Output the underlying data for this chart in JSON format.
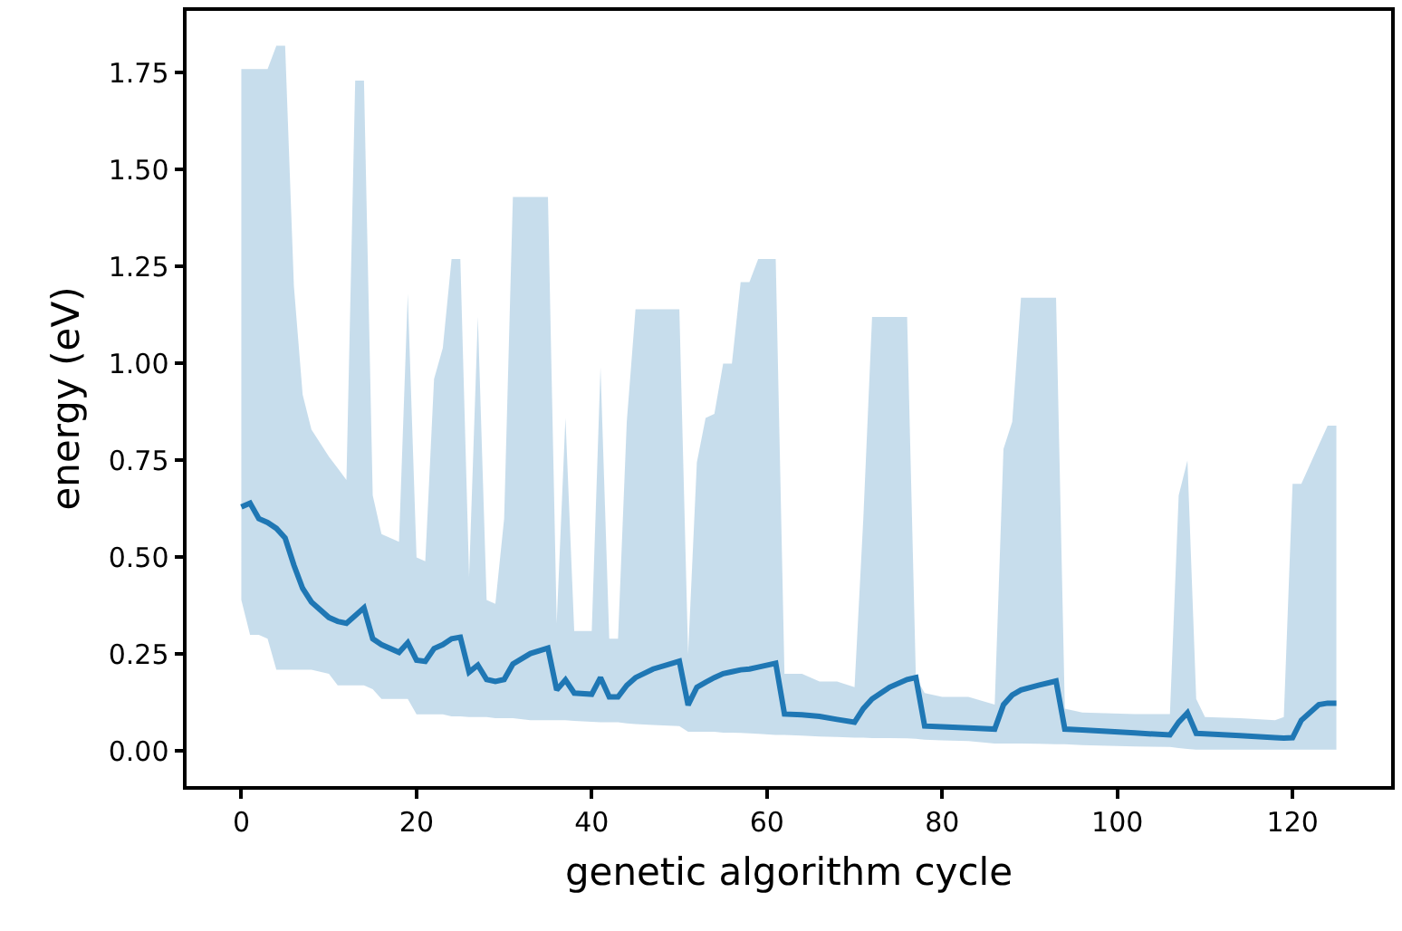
{
  "chart_data": {
    "type": "line",
    "xlabel": "genetic algorithm cycle",
    "ylabel": "energy (eV)",
    "xlim": [
      -6.25,
      131.25
    ],
    "xticks": [
      0,
      20,
      40,
      60,
      80,
      100,
      120
    ],
    "ylim": [
      -0.09,
      1.91
    ],
    "yticks": [
      {
        "value": 0,
        "label": "0.00"
      },
      {
        "value": 0.25,
        "label": "0.25"
      },
      {
        "value": 0.5,
        "label": "0.50"
      },
      {
        "value": 0.75,
        "label": "0.75"
      },
      {
        "value": 1,
        "label": "1.00"
      },
      {
        "value": 1.25,
        "label": "1.25"
      },
      {
        "value": 1.5,
        "label": "1.50"
      },
      {
        "value": 1.75,
        "label": "1.75"
      }
    ],
    "series": [
      {
        "color": "#1f77b4",
        "x": [
          0,
          1,
          2,
          3,
          4,
          5,
          6,
          7,
          8,
          10,
          11,
          12,
          13,
          14,
          15,
          16,
          18,
          19,
          20,
          21,
          22,
          23,
          24,
          25,
          26,
          27,
          28,
          29,
          30,
          31,
          33,
          35,
          36,
          37,
          38,
          40,
          41,
          42,
          43,
          44,
          45,
          47,
          50,
          51,
          52,
          53,
          54,
          55,
          56,
          57,
          58,
          59,
          61,
          62,
          64,
          66,
          68,
          70,
          71,
          72,
          74,
          76,
          77,
          78,
          80,
          83,
          86,
          87,
          88,
          89,
          91,
          93,
          94,
          96,
          102,
          106,
          107,
          108,
          109,
          110,
          114,
          118,
          119,
          120,
          121,
          123,
          124,
          125
        ],
        "values": [
          0.63,
          0.64,
          0.6,
          0.59,
          0.575,
          0.55,
          0.48,
          0.42,
          0.385,
          0.345,
          0.335,
          0.33,
          0.35,
          0.37,
          0.29,
          0.275,
          0.255,
          0.28,
          0.235,
          0.232,
          0.265,
          0.275,
          0.29,
          0.294,
          0.204,
          0.222,
          0.185,
          0.18,
          0.185,
          0.225,
          0.252,
          0.266,
          0.158,
          0.184,
          0.15,
          0.147,
          0.19,
          0.14,
          0.14,
          0.17,
          0.19,
          0.212,
          0.232,
          0.119,
          0.165,
          0.178,
          0.19,
          0.2,
          0.205,
          0.21,
          0.212,
          0.217,
          0.227,
          0.096,
          0.094,
          0.09,
          0.082,
          0.075,
          0.11,
          0.135,
          0.165,
          0.185,
          0.19,
          0.065,
          0.063,
          0.06,
          0.057,
          0.12,
          0.145,
          0.158,
          0.17,
          0.181,
          0.057,
          0.055,
          0.047,
          0.042,
          0.075,
          0.099,
          0.046,
          0.045,
          0.04,
          0.035,
          0.034,
          0.035,
          0.08,
          0.12,
          0.124,
          0.124
        ],
        "upper": [
          1.76,
          1.76,
          1.76,
          1.76,
          1.82,
          1.82,
          1.2,
          0.92,
          0.83,
          0.76,
          0.73,
          0.7,
          1.73,
          1.73,
          0.66,
          0.56,
          0.54,
          1.18,
          0.5,
          0.49,
          0.96,
          1.04,
          1.27,
          1.27,
          0.45,
          1.12,
          0.39,
          0.38,
          0.6,
          1.43,
          1.43,
          1.43,
          0.33,
          0.86,
          0.31,
          0.31,
          0.99,
          0.29,
          0.29,
          0.85,
          1.14,
          1.14,
          1.14,
          0.25,
          0.745,
          0.86,
          0.87,
          1.0,
          1.0,
          1.21,
          1.21,
          1.27,
          1.27,
          0.2,
          0.2,
          0.18,
          0.18,
          0.165,
          0.6,
          1.12,
          1.12,
          1.12,
          0.19,
          0.15,
          0.14,
          0.14,
          0.12,
          0.78,
          0.85,
          1.17,
          1.17,
          1.17,
          0.11,
          0.1,
          0.096,
          0.096,
          0.66,
          0.75,
          0.135,
          0.088,
          0.085,
          0.08,
          0.088,
          0.69,
          0.69,
          0.79,
          0.84,
          0.84
        ],
        "lower": [
          0.39,
          0.3,
          0.3,
          0.29,
          0.21,
          0.21,
          0.21,
          0.21,
          0.21,
          0.2,
          0.17,
          0.17,
          0.17,
          0.17,
          0.16,
          0.135,
          0.135,
          0.135,
          0.095,
          0.095,
          0.095,
          0.095,
          0.09,
          0.09,
          0.088,
          0.088,
          0.088,
          0.085,
          0.085,
          0.085,
          0.08,
          0.08,
          0.08,
          0.08,
          0.078,
          0.076,
          0.075,
          0.075,
          0.075,
          0.072,
          0.07,
          0.068,
          0.065,
          0.05,
          0.05,
          0.05,
          0.05,
          0.048,
          0.048,
          0.047,
          0.046,
          0.045,
          0.042,
          0.042,
          0.04,
          0.038,
          0.037,
          0.035,
          0.035,
          0.034,
          0.034,
          0.033,
          0.032,
          0.03,
          0.028,
          0.026,
          0.02,
          0.02,
          0.02,
          0.02,
          0.019,
          0.018,
          0.018,
          0.016,
          0.012,
          0.011,
          0.008,
          0.006,
          0.004,
          0.004,
          0.004,
          0.004,
          0.004,
          0.004,
          0.004,
          0.004,
          0.004,
          0.004
        ]
      }
    ]
  }
}
